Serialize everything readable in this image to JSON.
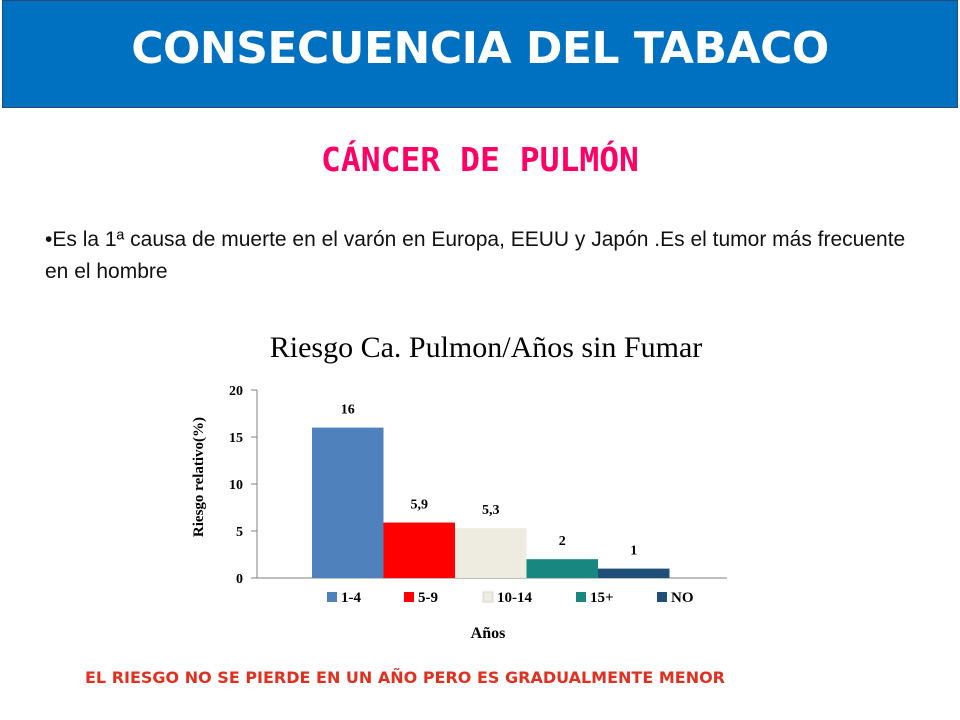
{
  "slide": {
    "header_title": "CONSECUENCIA DEL TABACO",
    "subtitle": "CÁNCER DE PULMÓN",
    "bullet_text": "•Es la 1ª causa de muerte en el varón en Europa, EEUU y Japón .Es el tumor más frecuente en el hombre",
    "footer_note": "EL RIESGO NO SE PIERDE EN UN AÑO PERO ES GRADUALMENTE MENOR",
    "colors": {
      "header_bg": "#0070c0",
      "subtitle": "#ff0066",
      "footer": "#e03020"
    }
  },
  "chart_data": {
    "type": "bar",
    "title": "Riesgo Ca. Pulmon/Años sin Fumar",
    "xlabel": "Años",
    "ylabel": "Riesgo relativo(%)",
    "ylim": [
      0,
      20
    ],
    "yticks": [
      "0",
      "5",
      "10",
      "15",
      "20"
    ],
    "grid": false,
    "legend_position": "bottom",
    "series": [
      {
        "name": "1-4",
        "value": 16,
        "label": "16",
        "color": "#4f81bd"
      },
      {
        "name": "5-9",
        "value": 5.9,
        "label": "5,9",
        "color": "#ff0000"
      },
      {
        "name": "10-14",
        "value": 5.3,
        "label": "5,3",
        "color": "#eeece1"
      },
      {
        "name": "15+",
        "value": 2,
        "label": "2",
        "color": "#17877f"
      },
      {
        "name": "NO",
        "value": 1,
        "label": "1",
        "color": "#1f4e79"
      }
    ]
  }
}
